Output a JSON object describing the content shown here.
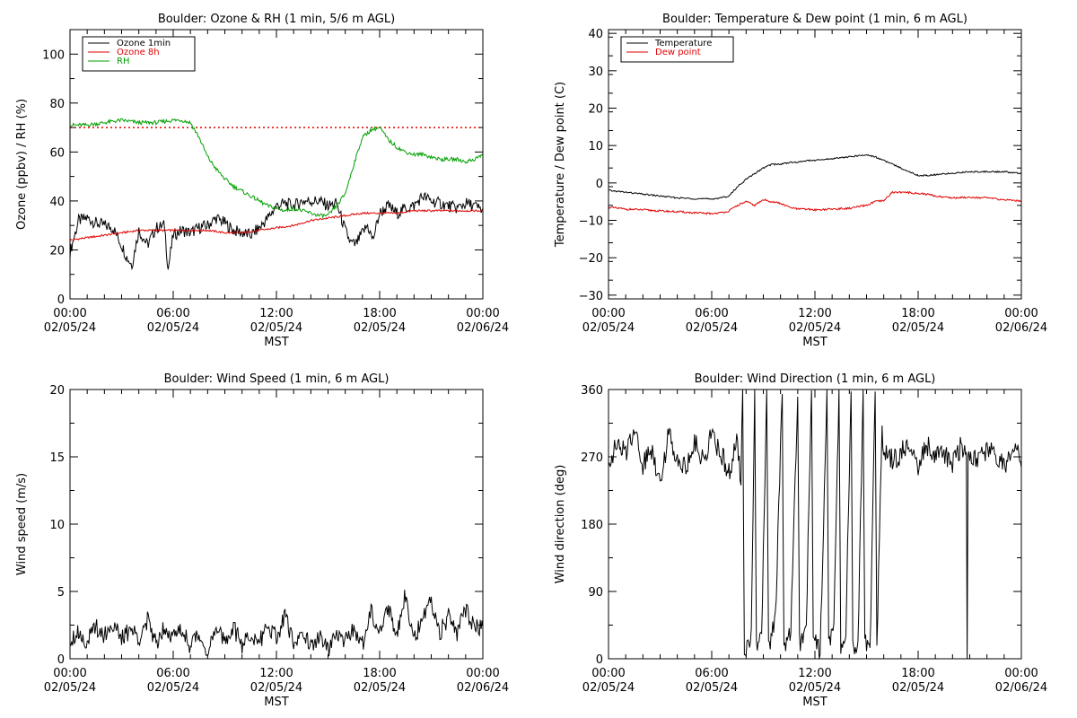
{
  "chart_data": [
    {
      "type": "line",
      "title": "Boulder: Ozone & RH (1 min, 5/6 m AGL)",
      "xlabel": "MST",
      "ylabel": "Ozone (ppbv) / RH (%)",
      "xlim_hours": [
        0,
        24
      ],
      "ylim": [
        0,
        110
      ],
      "yticks": [
        0,
        20,
        40,
        60,
        80,
        100
      ],
      "ytick_labels": [
        "0",
        "20",
        "40",
        "60",
        "80",
        "100"
      ],
      "xtick_labels": [
        {
          "time": "00:00",
          "date": "02/05/24"
        },
        {
          "time": "06:00",
          "date": "02/05/24"
        },
        {
          "time": "12:00",
          "date": "02/05/24"
        },
        {
          "time": "18:00",
          "date": "02/05/24"
        },
        {
          "time": "00:00",
          "date": "02/06/24"
        }
      ],
      "legend_position": "top-left",
      "reference_line": {
        "y": 70,
        "color": "#e00000",
        "style": "dotted"
      },
      "series": [
        {
          "name": "Ozone 1min",
          "color": "#000000",
          "x": [
            0,
            0.5,
            1,
            1.5,
            2,
            2.5,
            3,
            3.3,
            3.6,
            4,
            4.5,
            5,
            5.5,
            5.7,
            6,
            6.5,
            7,
            7.5,
            8,
            8.5,
            9,
            9.5,
            10,
            10.5,
            11,
            11.5,
            12,
            12.5,
            13,
            13.5,
            14,
            14.5,
            15,
            15.5,
            16,
            16.3,
            16.6,
            17,
            17.3,
            17.6,
            18,
            18.5,
            19,
            19.5,
            20,
            20.5,
            21,
            21.5,
            22,
            22.5,
            23,
            23.5,
            24
          ],
          "y": [
            19,
            32,
            33,
            31,
            30,
            29,
            22,
            17,
            14,
            28,
            22,
            29,
            30,
            12,
            26,
            28,
            27,
            29,
            30,
            33,
            31,
            28,
            27,
            26,
            29,
            33,
            38,
            39,
            38,
            40,
            40,
            40,
            38,
            39,
            28,
            23,
            22,
            27,
            30,
            24,
            35,
            38,
            35,
            37,
            38,
            42,
            40,
            39,
            38,
            37,
            39,
            38,
            36
          ]
        },
        {
          "name": "Ozone 8h",
          "color": "#e00000",
          "x": [
            0,
            1,
            2,
            3,
            4,
            5,
            6,
            7,
            8,
            9,
            10,
            11,
            12,
            13,
            14,
            15,
            16,
            17,
            18,
            19,
            20,
            21,
            22,
            23,
            24
          ],
          "y": [
            24,
            25,
            26,
            27,
            28,
            28,
            28,
            28,
            28,
            27,
            27,
            28,
            29,
            30,
            32,
            33,
            34,
            35,
            35,
            35,
            36,
            36,
            36,
            36,
            36
          ]
        },
        {
          "name": "RH",
          "color": "#00a000",
          "x": [
            0,
            1,
            2,
            3,
            4,
            5,
            6,
            6.5,
            7,
            7.5,
            8,
            8.5,
            9,
            9.5,
            10,
            10.5,
            11,
            11.5,
            12,
            12.5,
            13,
            13.5,
            14,
            14.5,
            15,
            15.5,
            16,
            16.5,
            17,
            17.5,
            18,
            18.5,
            19,
            19.5,
            20,
            20.5,
            21,
            21.5,
            22,
            22.5,
            23,
            23.5,
            24
          ],
          "y": [
            71,
            71,
            72,
            73,
            72,
            72,
            73,
            73,
            72,
            66,
            58,
            53,
            49,
            46,
            44,
            42,
            40,
            38,
            37,
            36,
            37,
            36,
            35,
            34,
            34,
            38,
            43,
            55,
            66,
            69,
            70,
            65,
            62,
            60,
            59,
            59,
            58,
            57,
            57,
            57,
            56,
            57,
            59
          ]
        }
      ]
    },
    {
      "type": "line",
      "title": "Boulder: Temperature & Dew point (1 min, 6 m AGL)",
      "xlabel": "MST",
      "ylabel": "Temperature / Dew point (C)",
      "xlim_hours": [
        0,
        24
      ],
      "ylim": [
        -31,
        41
      ],
      "yticks": [
        -30,
        -20,
        -10,
        0,
        10,
        20,
        30,
        40
      ],
      "ytick_labels": [
        "−30",
        "−20",
        "−10",
        "0",
        "10",
        "20",
        "30",
        "40"
      ],
      "xtick_labels": [
        {
          "time": "00:00",
          "date": "02/05/24"
        },
        {
          "time": "06:00",
          "date": "02/05/24"
        },
        {
          "time": "12:00",
          "date": "02/05/24"
        },
        {
          "time": "18:00",
          "date": "02/05/24"
        },
        {
          "time": "00:00",
          "date": "02/06/24"
        }
      ],
      "legend_position": "top-left",
      "series": [
        {
          "name": "Temperature",
          "color": "#000000",
          "x": [
            0,
            1,
            2,
            3,
            4,
            5,
            6,
            6.5,
            7,
            7.5,
            8,
            8.5,
            9,
            9.5,
            10,
            10.5,
            11,
            11.5,
            12,
            13,
            14,
            15,
            15.5,
            16,
            16.5,
            17,
            17.5,
            18,
            18.5,
            19,
            20,
            21,
            22,
            23,
            24
          ],
          "y": [
            -2,
            -2.5,
            -3,
            -3.5,
            -4,
            -4.2,
            -4.3,
            -4,
            -3.5,
            -1,
            1,
            2.5,
            4,
            5,
            5,
            5.5,
            5.5,
            6,
            6,
            6.5,
            7,
            7.5,
            7,
            6,
            5,
            4,
            3,
            2,
            2,
            2.2,
            2.6,
            3,
            3,
            3,
            2.5
          ]
        },
        {
          "name": "Dew point",
          "color": "#e00000",
          "x": [
            0,
            1,
            2,
            3,
            4,
            5,
            6,
            6.5,
            7,
            7.5,
            8,
            8.5,
            9,
            9.5,
            10,
            10.5,
            11,
            11.5,
            12,
            13,
            14,
            15,
            15.5,
            16,
            16.5,
            17,
            17.5,
            18,
            18.5,
            19,
            20,
            21,
            22,
            23,
            24
          ],
          "y": [
            -6.5,
            -7,
            -7.2,
            -7.5,
            -7.7,
            -8,
            -8.2,
            -8,
            -7.5,
            -6,
            -5,
            -6,
            -4.5,
            -5,
            -5.5,
            -6.5,
            -7,
            -7,
            -7.2,
            -7,
            -6.8,
            -6,
            -5,
            -4.8,
            -2.5,
            -2.5,
            -2.6,
            -2.8,
            -3,
            -3.5,
            -4,
            -3.8,
            -4,
            -4.5,
            -4.8
          ]
        }
      ]
    },
    {
      "type": "line",
      "title": "Boulder: Wind Speed (1 min, 6 m AGL)",
      "xlabel": "MST",
      "ylabel": "Wind speed (m/s)",
      "xlim_hours": [
        0,
        24
      ],
      "ylim": [
        0,
        20
      ],
      "yticks": [
        0,
        5,
        10,
        15,
        20
      ],
      "ytick_labels": [
        "0",
        "5",
        "10",
        "15",
        "20"
      ],
      "xtick_labels": [
        {
          "time": "00:00",
          "date": "02/05/24"
        },
        {
          "time": "06:00",
          "date": "02/05/24"
        },
        {
          "time": "12:00",
          "date": "02/05/24"
        },
        {
          "time": "18:00",
          "date": "02/05/24"
        },
        {
          "time": "00:00",
          "date": "02/06/24"
        }
      ],
      "series": [
        {
          "name": "",
          "color": "#000000",
          "x": [
            0,
            0.5,
            1,
            1.5,
            2,
            2.5,
            3,
            3.5,
            4,
            4.5,
            5,
            5.5,
            6,
            6.5,
            7,
            7.5,
            8,
            8.5,
            9,
            9.5,
            10,
            10.5,
            11,
            11.5,
            12,
            12.5,
            13,
            13.5,
            14,
            14.5,
            15,
            15.5,
            16,
            16.5,
            17,
            17.5,
            18,
            18.5,
            19,
            19.5,
            20,
            20.5,
            21,
            21.5,
            22,
            22.5,
            23,
            23.5,
            24
          ],
          "y": [
            1.5,
            2,
            1.2,
            2.4,
            1.8,
            2.6,
            1.4,
            2.2,
            1.6,
            2.8,
            1.2,
            2.5,
            1.6,
            2.2,
            1,
            1.8,
            0.6,
            2,
            1.4,
            2.3,
            1,
            1.8,
            1.2,
            2.5,
            1.6,
            3.1,
            1.1,
            2.2,
            0.8,
            1.7,
            0.6,
            1.8,
            1.2,
            2.4,
            1,
            3.5,
            2.2,
            3.8,
            1.8,
            4.9,
            1.5,
            2.8,
            4.2,
            2,
            3.1,
            1.8,
            3.6,
            2.4,
            2.2
          ]
        }
      ]
    },
    {
      "type": "line",
      "title": "Boulder: Wind Direction (1 min, 6 m AGL)",
      "xlabel": "MST",
      "ylabel": "Wind direction (deg)",
      "xlim_hours": [
        0,
        24
      ],
      "ylim": [
        0,
        360
      ],
      "yticks": [
        0,
        90,
        180,
        270,
        360
      ],
      "ytick_labels": [
        "0",
        "90",
        "180",
        "270",
        "360"
      ],
      "xtick_labels": [
        {
          "time": "00:00",
          "date": "02/05/24"
        },
        {
          "time": "06:00",
          "date": "02/05/24"
        },
        {
          "time": "12:00",
          "date": "02/05/24"
        },
        {
          "time": "18:00",
          "date": "02/05/24"
        },
        {
          "time": "00:00",
          "date": "02/06/24"
        }
      ],
      "series": [
        {
          "name": "",
          "color": "#000000",
          "x": [
            0,
            0.5,
            1,
            1.5,
            2,
            2.5,
            3,
            3.5,
            4,
            4.5,
            5,
            5.5,
            6,
            6.5,
            7,
            7.5,
            7.7,
            7.8,
            7.9,
            8.3,
            8.5,
            8.6,
            8.9,
            9.2,
            9.3,
            9.7,
            10.1,
            10.2,
            10.6,
            11,
            11.1,
            11.5,
            11.8,
            11.9,
            12.3,
            12.7,
            12.8,
            13.1,
            13.4,
            13.5,
            13.8,
            14.1,
            14.2,
            14.5,
            14.8,
            14.9,
            15.2,
            15.5,
            15.6,
            15.9,
            16.1,
            16.2,
            16.5,
            17,
            17.5,
            18,
            18.5,
            19,
            19.5,
            20,
            20.5,
            20.8,
            20.85,
            20.9,
            21.5,
            22,
            22.5,
            23,
            23.5,
            24
          ],
          "y": [
            265,
            285,
            275,
            310,
            260,
            280,
            240,
            300,
            270,
            255,
            290,
            265,
            300,
            275,
            250,
            290,
            230,
            360,
            0,
            40,
            360,
            10,
            30,
            360,
            20,
            50,
            360,
            15,
            35,
            360,
            20,
            45,
            360,
            30,
            10,
            360,
            25,
            40,
            360,
            15,
            35,
            360,
            20,
            10,
            360,
            30,
            5,
            360,
            20,
            300,
            270,
            280,
            265,
            275,
            290,
            260,
            285,
            270,
            275,
            260,
            285,
            270,
            10,
            270,
            265,
            280,
            270,
            260,
            275,
            270
          ]
        }
      ]
    }
  ]
}
